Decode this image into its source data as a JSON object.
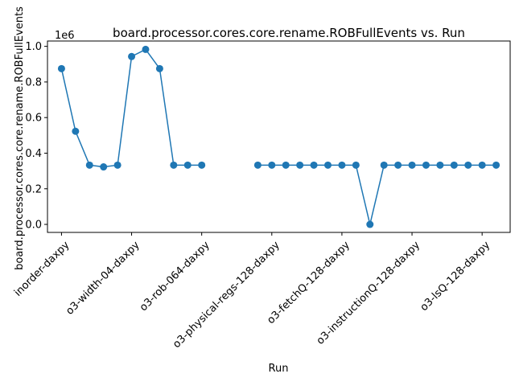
{
  "chart_data": {
    "type": "line",
    "title": "board.processor.cores.core.rename.ROBFullEvents vs. Run",
    "xlabel": "Run",
    "ylabel": "board.processor.cores.core.rename.ROBFullEvents",
    "y_offset_label": "1e6",
    "y_scale": 1000000,
    "ylim": [
      -0.045,
      1.03
    ],
    "xlim": [
      -1.0,
      32.0
    ],
    "yticks": [
      0.0,
      0.2,
      0.4,
      0.6,
      0.8,
      1.0
    ],
    "ytick_labels": [
      "0.0",
      "0.2",
      "0.4",
      "0.6",
      "0.8",
      "1.0"
    ],
    "xticks": [
      0,
      5,
      10,
      15,
      20,
      25,
      30
    ],
    "xtick_labels": [
      "inorder-daxpy",
      "o3-width-04-daxpy",
      "o3-rob-064-daxpy",
      "o3-physical-regs-128-daxpy",
      "o3-fetchQ-128-daxpy",
      "o3-instructionQ-128-daxpy",
      "o3-lsQ-128-daxpy"
    ],
    "color": "#1f77b4",
    "marker": "circle",
    "grid": false,
    "series": [
      {
        "x": [
          0,
          1,
          2,
          3,
          4,
          5,
          6,
          7,
          8,
          9,
          10,
          11,
          12,
          13,
          14,
          15,
          16,
          17,
          18,
          19,
          20,
          21,
          22,
          23,
          24,
          25,
          26,
          27,
          28,
          29,
          30,
          31
        ],
        "values": [
          0.875,
          0.523,
          0.333,
          0.323,
          0.333,
          0.943,
          0.983,
          0.875,
          0.333,
          0.333,
          0.333,
          null,
          null,
          null,
          0.333,
          0.333,
          0.333,
          0.333,
          0.333,
          0.333,
          0.333,
          0.333,
          0.0,
          0.333,
          0.333,
          0.333,
          0.333,
          0.333,
          0.333,
          0.333,
          0.333,
          0.333
        ]
      }
    ]
  }
}
